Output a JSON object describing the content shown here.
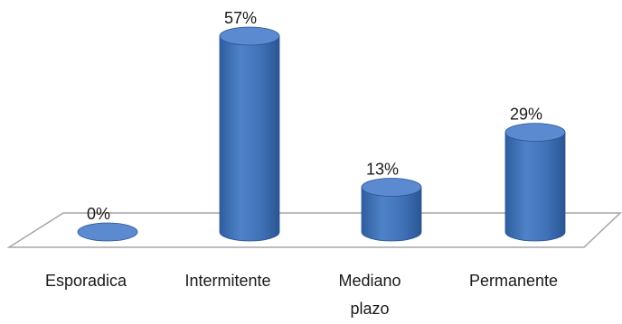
{
  "chart_data": {
    "type": "bar",
    "style": "3d-cylinder",
    "categories": [
      "Esporadica",
      "Intermitente",
      "Mediano plazo",
      "Permanente"
    ],
    "category_label_lines": [
      [
        "Esporadica"
      ],
      [
        "Intermitente"
      ],
      [
        "Mediano",
        "plazo"
      ],
      [
        "Permanente"
      ]
    ],
    "values": [
      0,
      57,
      13,
      29
    ],
    "data_labels": [
      "0%",
      "57%",
      "13%",
      "29%"
    ],
    "unit": "%",
    "title": "",
    "xlabel": "",
    "ylabel": "",
    "ylim": [
      0,
      57
    ],
    "grid": false,
    "legend": "none",
    "colors": {
      "bar_body": "#3f71b7",
      "bar_top": "#5b8ad0",
      "bar_edge": "#2a5592",
      "floor": "#a6a6a6",
      "text": "#1a1a1a"
    }
  }
}
